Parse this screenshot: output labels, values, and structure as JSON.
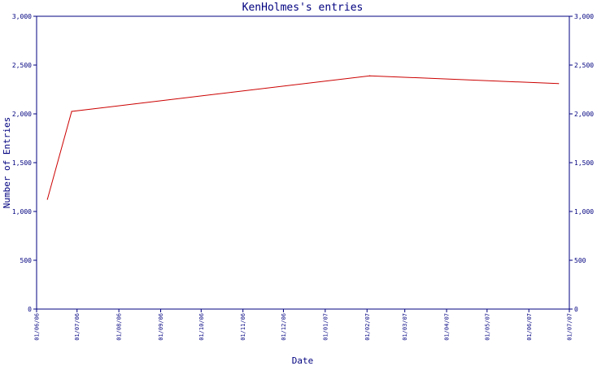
{
  "chart_data": {
    "type": "line",
    "title": "KenHolmes's entries",
    "xlabel": "Date",
    "ylabel": "Number of Entries",
    "ylim": [
      0,
      3000
    ],
    "yticks": [
      "0",
      "500",
      "1,000",
      "1,500",
      "2,000",
      "2,500",
      "3,000"
    ],
    "ytick_values": [
      0,
      500,
      1000,
      1500,
      2000,
      2500,
      3000
    ],
    "xlim": [
      "2006-06-01",
      "2007-07-01"
    ],
    "xticks": [
      "01/06/06",
      "01/07/06",
      "01/08/06",
      "01/09/06",
      "01/10/06",
      "01/11/06",
      "01/12/06",
      "01/01/07",
      "01/02/07",
      "01/03/07",
      "01/04/07",
      "01/05/07",
      "01/06/07",
      "01/07/07"
    ],
    "xtick_dates": [
      "2006-06-01",
      "2006-07-01",
      "2006-08-01",
      "2006-09-01",
      "2006-10-01",
      "2006-11-01",
      "2006-12-01",
      "2007-01-01",
      "2007-02-01",
      "2007-03-01",
      "2007-04-01",
      "2007-05-01",
      "2007-06-01",
      "2007-07-01"
    ],
    "grid": false,
    "series": [
      {
        "x": [
          "2006-06-09",
          "2006-06-27",
          "2007-02-03",
          "2007-06-23"
        ],
        "values": [
          1125,
          2025,
          2390,
          2310
        ]
      }
    ],
    "colors": {
      "axis": "#000080",
      "line": "#cc0000",
      "background": "#ffffff"
    }
  }
}
